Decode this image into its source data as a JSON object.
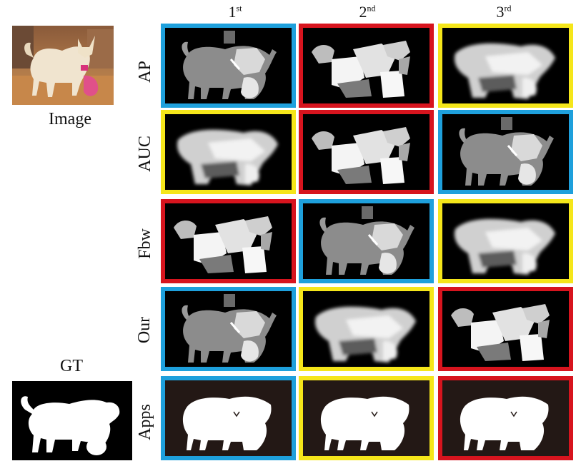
{
  "left_panel": {
    "image_caption": "Image",
    "gt_caption": "GT"
  },
  "columns": [
    {
      "num": "1",
      "sup": "st"
    },
    {
      "num": "2",
      "sup": "nd"
    },
    {
      "num": "3",
      "sup": "rd"
    }
  ],
  "rows": [
    {
      "label": "AP",
      "tiles": [
        {
          "frame": "blue",
          "map": "segmented"
        },
        {
          "frame": "red",
          "map": "patchy"
        },
        {
          "frame": "yellow",
          "map": "soft"
        }
      ]
    },
    {
      "label": "AUC",
      "tiles": [
        {
          "frame": "yellow",
          "map": "soft"
        },
        {
          "frame": "red",
          "map": "patchy"
        },
        {
          "frame": "blue",
          "map": "segmented"
        }
      ]
    },
    {
      "label": "Fbw",
      "tiles": [
        {
          "frame": "red",
          "map": "patchy"
        },
        {
          "frame": "blue",
          "map": "segmented"
        },
        {
          "frame": "yellow",
          "map": "soft"
        }
      ]
    },
    {
      "label": "Our",
      "tiles": [
        {
          "frame": "blue",
          "map": "segmented"
        },
        {
          "frame": "yellow",
          "map": "soft"
        },
        {
          "frame": "red",
          "map": "patchy"
        }
      ]
    },
    {
      "label": "Apps",
      "tiles": [
        {
          "frame": "blue",
          "map": "binary"
        },
        {
          "frame": "yellow",
          "map": "binary"
        },
        {
          "frame": "red",
          "map": "binary"
        }
      ]
    }
  ],
  "frame_colors": {
    "blue": "#1ea0dc",
    "red": "#d7141e",
    "yellow": "#f5e61a"
  }
}
